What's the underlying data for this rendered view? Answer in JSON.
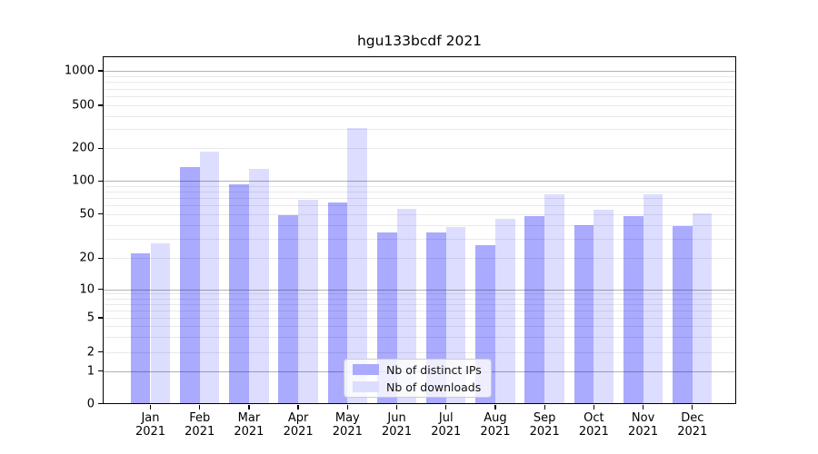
{
  "chart_data": {
    "type": "bar",
    "title": "hgu133bcdf 2021",
    "categories": [
      "Jan",
      "Feb",
      "Mar",
      "Apr",
      "May",
      "Jun",
      "Jul",
      "Aug",
      "Sep",
      "Oct",
      "Nov",
      "Dec"
    ],
    "category_year": "2021",
    "series": [
      {
        "name": "Nb of distinct IPs",
        "color": "#aaaaff",
        "values": [
          22,
          133,
          94,
          49,
          64,
          34,
          34,
          26,
          48,
          40,
          48,
          39
        ]
      },
      {
        "name": "Nb of downloads",
        "color": "#ddddff",
        "values": [
          27,
          188,
          130,
          68,
          310,
          56,
          38,
          45,
          75,
          55,
          76,
          51
        ]
      }
    ],
    "yticks": [
      0,
      1,
      2,
      5,
      10,
      20,
      50,
      100,
      200,
      500,
      1000
    ],
    "ylim": [
      0,
      1330
    ],
    "yscale": "symlog",
    "grid": "horizontal, major (powers of 10) + minor log lines, drawn over bars",
    "legend_position": "lower center inside plot",
    "background": "#ffffff",
    "grid_major_color": "#b3b3b3",
    "grid_minor_color": "#ebebeb"
  }
}
